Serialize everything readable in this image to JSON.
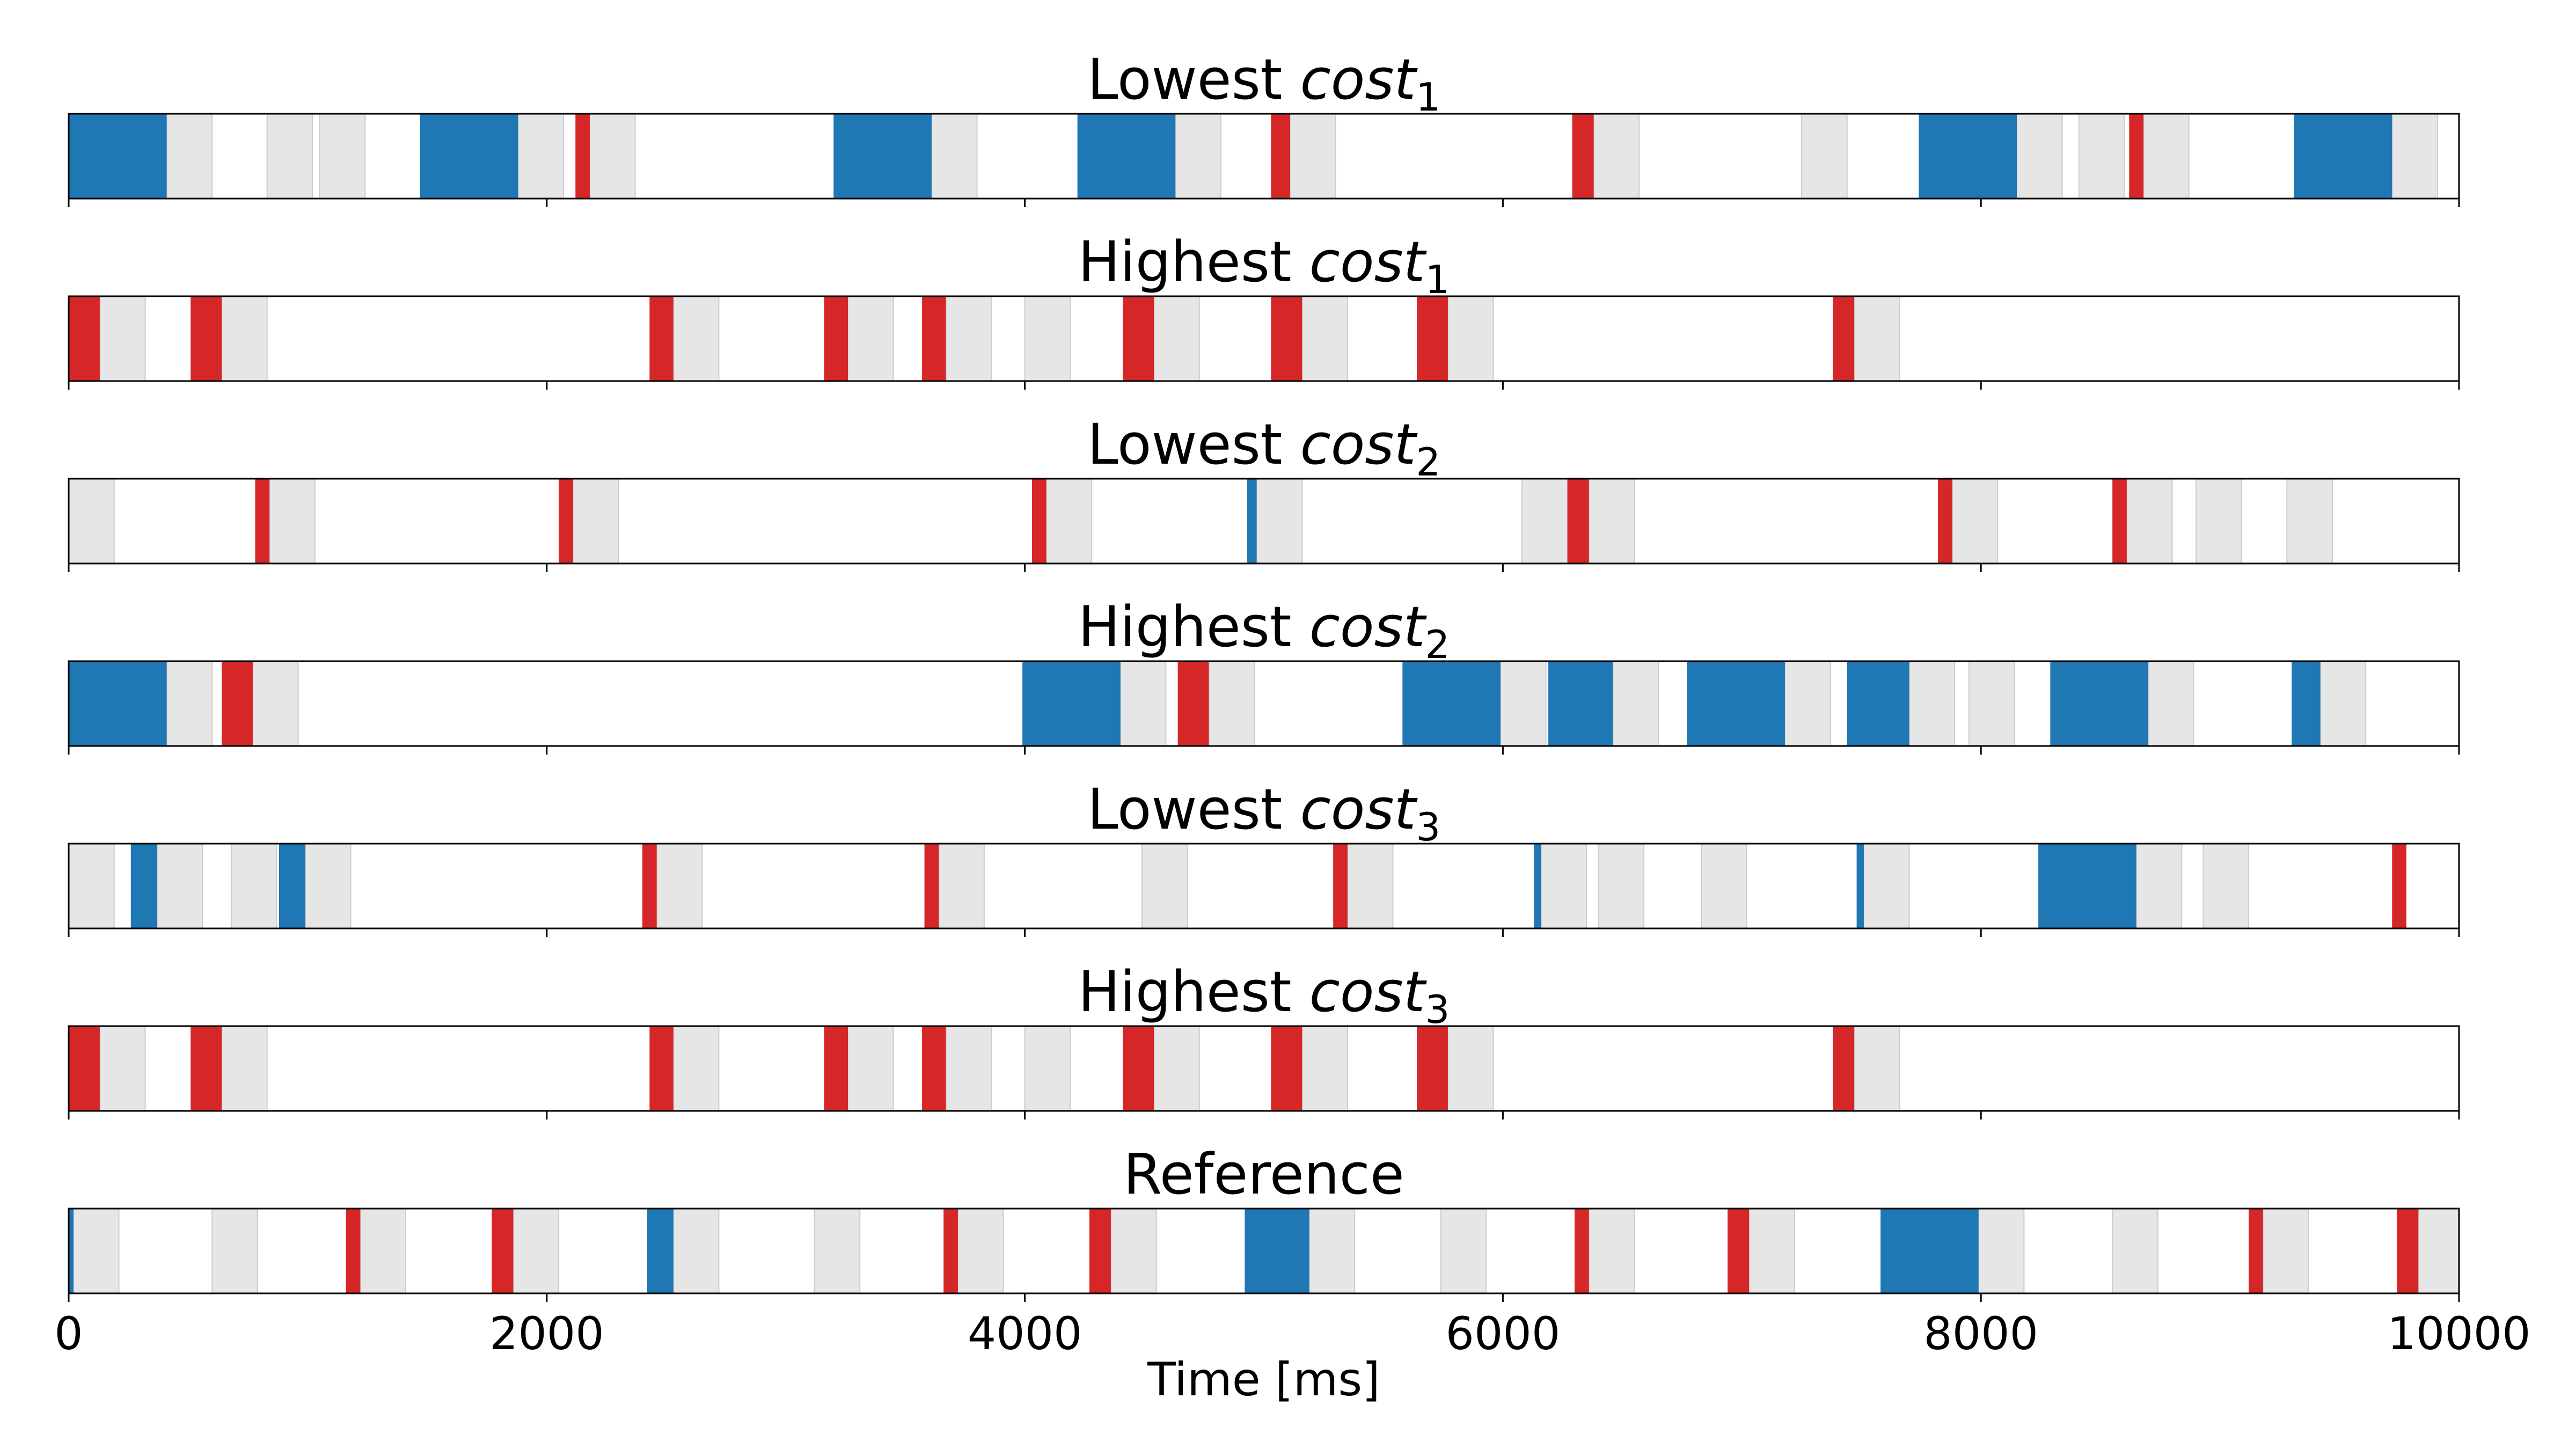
{
  "chart_data": {
    "type": "timeline",
    "xlabel": "Time [ms]",
    "xlim": [
      0,
      10000
    ],
    "xticks": [
      0,
      2000,
      4000,
      6000,
      8000,
      10000
    ],
    "xtick_labels": [
      "0",
      "2000",
      "4000",
      "6000",
      "8000",
      "10000"
    ],
    "colors": {
      "blue": "#1f77b4",
      "red": "#d62728",
      "gray": "#e6e6e6"
    },
    "panels": [
      {
        "title": {
          "prefix": "Lowest ",
          "italic": "cost",
          "sub": "1"
        },
        "blue": [
          [
            0,
            410
          ],
          [
            1470,
            1880
          ],
          [
            3200,
            3610
          ],
          [
            4220,
            4630
          ],
          [
            7740,
            8150
          ],
          [
            9310,
            9720
          ]
        ],
        "red": [
          [
            2120,
            2180
          ],
          [
            5030,
            5110
          ],
          [
            6290,
            6380
          ],
          [
            8620,
            8680
          ]
        ],
        "gray": [
          [
            410,
            600
          ],
          [
            830,
            1020
          ],
          [
            1050,
            1240
          ],
          [
            1880,
            2070
          ],
          [
            2180,
            2370
          ],
          [
            3610,
            3800
          ],
          [
            4630,
            4820
          ],
          [
            5110,
            5300
          ],
          [
            6380,
            6570
          ],
          [
            7250,
            7440
          ],
          [
            8150,
            8340
          ],
          [
            8410,
            8600
          ],
          [
            8680,
            8870
          ],
          [
            9720,
            9910
          ]
        ]
      },
      {
        "title": {
          "prefix": "Highest ",
          "italic": "cost",
          "sub": "1"
        },
        "blue": [],
        "red": [
          [
            0,
            130
          ],
          [
            510,
            640
          ],
          [
            2430,
            2530
          ],
          [
            3160,
            3260
          ],
          [
            3570,
            3670
          ],
          [
            4410,
            4540
          ],
          [
            5030,
            5160
          ],
          [
            5640,
            5770
          ],
          [
            7380,
            7470
          ]
        ],
        "gray": [
          [
            130,
            320
          ],
          [
            640,
            830
          ],
          [
            2530,
            2720
          ],
          [
            3260,
            3450
          ],
          [
            3670,
            3860
          ],
          [
            4000,
            4190
          ],
          [
            4540,
            4730
          ],
          [
            5160,
            5350
          ],
          [
            5770,
            5960
          ],
          [
            7470,
            7660
          ]
        ]
      },
      {
        "title": {
          "prefix": "Lowest ",
          "italic": "cost",
          "sub": "2"
        },
        "blue": [
          [
            4930,
            4970
          ]
        ],
        "red": [
          [
            780,
            840
          ],
          [
            2050,
            2110
          ],
          [
            4030,
            4090
          ],
          [
            6270,
            6360
          ],
          [
            7820,
            7880
          ],
          [
            8550,
            8610
          ]
        ],
        "gray": [
          [
            0,
            190
          ],
          [
            840,
            1030
          ],
          [
            2110,
            2300
          ],
          [
            4090,
            4280
          ],
          [
            4970,
            5160
          ],
          [
            6080,
            6270
          ],
          [
            6360,
            6550
          ],
          [
            7880,
            8070
          ],
          [
            8610,
            8800
          ],
          [
            8900,
            9090
          ],
          [
            9280,
            9470
          ]
        ]
      },
      {
        "title": {
          "prefix": "Highest ",
          "italic": "cost",
          "sub": "2"
        },
        "blue": [
          [
            0,
            410
          ],
          [
            3990,
            4400
          ],
          [
            5580,
            5990
          ],
          [
            6190,
            6460
          ],
          [
            6770,
            7180
          ],
          [
            7440,
            7700
          ],
          [
            8290,
            8700
          ],
          [
            9300,
            9420
          ]
        ],
        "red": [
          [
            640,
            770
          ],
          [
            4640,
            4770
          ]
        ],
        "gray": [
          [
            410,
            600
          ],
          [
            770,
            960
          ],
          [
            4400,
            4590
          ],
          [
            4770,
            4960
          ],
          [
            5990,
            6180
          ],
          [
            6460,
            6650
          ],
          [
            7180,
            7370
          ],
          [
            7700,
            7890
          ],
          [
            7950,
            8140
          ],
          [
            8700,
            8890
          ],
          [
            9420,
            9610
          ]
        ]
      },
      {
        "title": {
          "prefix": "Lowest ",
          "italic": "cost",
          "sub": "3"
        },
        "blue": [
          [
            260,
            370
          ],
          [
            880,
            990
          ],
          [
            6130,
            6160
          ],
          [
            7480,
            7510
          ],
          [
            8240,
            8650
          ]
        ],
        "red": [
          [
            2400,
            2460
          ],
          [
            3580,
            3640
          ],
          [
            5290,
            5350
          ],
          [
            9720,
            9780
          ]
        ],
        "gray": [
          [
            0,
            190
          ],
          [
            370,
            560
          ],
          [
            680,
            870
          ],
          [
            990,
            1180
          ],
          [
            2460,
            2650
          ],
          [
            3640,
            3830
          ],
          [
            4490,
            4680
          ],
          [
            5350,
            5540
          ],
          [
            6160,
            6350
          ],
          [
            6400,
            6590
          ],
          [
            6830,
            7020
          ],
          [
            7510,
            7700
          ],
          [
            8650,
            8840
          ],
          [
            8930,
            9120
          ]
        ]
      },
      {
        "title": {
          "prefix": "Highest ",
          "italic": "cost",
          "sub": "3"
        },
        "blue": [],
        "red": [
          [
            0,
            130
          ],
          [
            510,
            640
          ],
          [
            2430,
            2530
          ],
          [
            3160,
            3260
          ],
          [
            3570,
            3670
          ],
          [
            4410,
            4540
          ],
          [
            5030,
            5160
          ],
          [
            5640,
            5770
          ],
          [
            7380,
            7470
          ]
        ],
        "gray": [
          [
            130,
            320
          ],
          [
            640,
            830
          ],
          [
            2530,
            2720
          ],
          [
            3260,
            3450
          ],
          [
            3670,
            3860
          ],
          [
            4000,
            4190
          ],
          [
            4540,
            4730
          ],
          [
            5160,
            5350
          ],
          [
            5770,
            5960
          ],
          [
            7470,
            7660
          ]
        ]
      },
      {
        "title": {
          "prefix": "Reference",
          "italic": "",
          "sub": ""
        },
        "blue": [
          [
            0,
            20
          ],
          [
            2420,
            2530
          ],
          [
            4920,
            5190
          ],
          [
            7580,
            7990
          ]
        ],
        "red": [
          [
            1160,
            1220
          ],
          [
            1770,
            1860
          ],
          [
            3660,
            3720
          ],
          [
            4270,
            4360
          ],
          [
            6300,
            6360
          ],
          [
            6940,
            7030
          ],
          [
            9120,
            9180
          ],
          [
            9740,
            9830
          ]
        ],
        "gray": [
          [
            20,
            210
          ],
          [
            600,
            790
          ],
          [
            1220,
            1410
          ],
          [
            1860,
            2050
          ],
          [
            2530,
            2720
          ],
          [
            3120,
            3310
          ],
          [
            3720,
            3910
          ],
          [
            4360,
            4550
          ],
          [
            5190,
            5380
          ],
          [
            5740,
            5930
          ],
          [
            6360,
            6550
          ],
          [
            7030,
            7220
          ],
          [
            7990,
            8180
          ],
          [
            8550,
            8740
          ],
          [
            9180,
            9370
          ],
          [
            9830,
            10000
          ]
        ]
      }
    ]
  }
}
